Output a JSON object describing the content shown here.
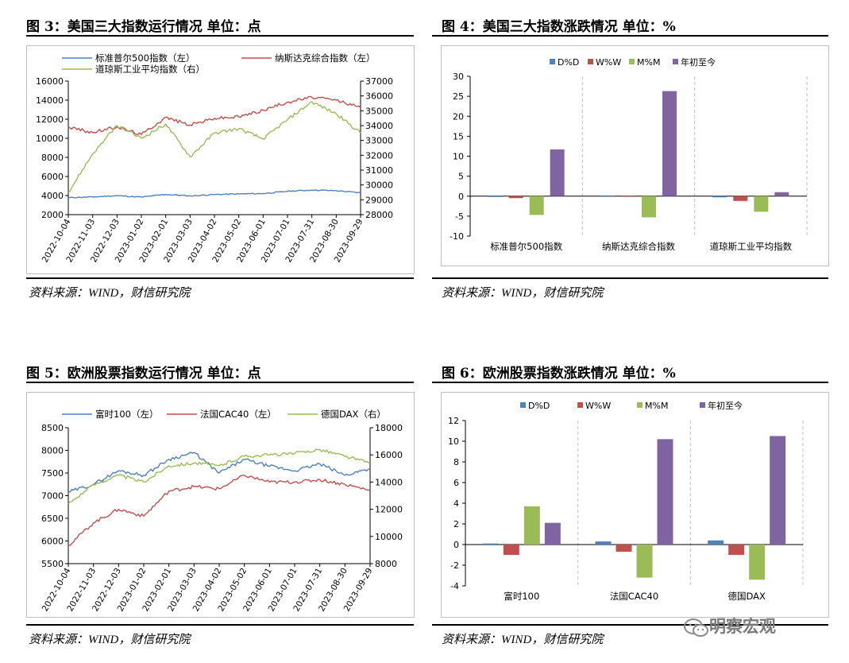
{
  "panels": [
    {
      "title": "图 3：美国三大指数运行情况  单位：点",
      "source": "资料来源：WIND，财信研究院"
    },
    {
      "title": "图 4：美国三大指数涨跌情况  单位：%",
      "source": "资料来源：WIND，财信研究院"
    },
    {
      "title": "图 5：欧洲股票指数运行情况  单位：点",
      "source": "资料来源：WIND，财信研究院"
    },
    {
      "title": "图 6：欧洲股票指数涨跌情况  单位：%",
      "source": "资料来源：WIND，财信研究院"
    }
  ],
  "watermark": "明察宏观",
  "colors": {
    "blue": "#4f81bd",
    "red": "#c0504d",
    "green": "#9bbb59",
    "purple": "#8064a2",
    "grid": "#d9d9d9",
    "axis": "#000000"
  },
  "chart_data": [
    {
      "type": "line",
      "dates": [
        "2022-10-04",
        "2022-11-03",
        "2022-12-03",
        "2023-01-02",
        "2023-02-01",
        "2023-03-03",
        "2023-04-02",
        "2023-05-02",
        "2023-06-01",
        "2023-07-01",
        "2023-07-31",
        "2023-08-30",
        "2023-09-29"
      ],
      "ylim_left": [
        2000,
        16000
      ],
      "yticks_left": [
        "16000",
        "14000",
        "12000",
        "10000",
        "8000",
        "6000",
        "4000",
        "2000"
      ],
      "ylim_right": [
        28000,
        37000
      ],
      "yticks_right": [
        "37000",
        "36000",
        "35000",
        "34000",
        "33000",
        "32000",
        "31000",
        "30000",
        "29000",
        "28000"
      ],
      "series": [
        {
          "name": "标准普尔500指数（左）",
          "color": "#4f81bd",
          "axis": "left",
          "values": [
            3780,
            3850,
            3990,
            3840,
            4120,
            3960,
            4110,
            4170,
            4210,
            4450,
            4580,
            4510,
            4290
          ]
        },
        {
          "name": "纳斯达克综合指数（左）",
          "color": "#c0504d",
          "axis": "left",
          "values": [
            11180,
            10600,
            11200,
            10400,
            12200,
            11400,
            12100,
            12250,
            12950,
            13800,
            14300,
            14000,
            13220
          ]
        },
        {
          "name": "道琼斯工业平均指数（右）",
          "color": "#9bbb59",
          "axis": "right",
          "values": [
            29500,
            32100,
            34000,
            33150,
            34100,
            31900,
            33500,
            33800,
            33100,
            34400,
            35600,
            34800,
            33500
          ]
        }
      ]
    },
    {
      "type": "bar",
      "categories": [
        "标准普尔500指数",
        "纳斯达克综合指数",
        "道琼斯工业平均指数"
      ],
      "ylim": [
        -10,
        30
      ],
      "yticks": [
        "30",
        "25",
        "20",
        "15",
        "10",
        "5",
        "0",
        "-5",
        "-10"
      ],
      "series": [
        {
          "name": "D%D",
          "color": "#4f81bd",
          "values": [
            -0.2,
            -0.1,
            -0.3
          ]
        },
        {
          "name": "W%W",
          "color": "#c0504d",
          "values": [
            -0.5,
            -0.1,
            -1.2
          ]
        },
        {
          "name": "M%M",
          "color": "#9bbb59",
          "values": [
            -4.7,
            -5.3,
            -3.9
          ]
        },
        {
          "name": "年初至今",
          "color": "#8064a2",
          "values": [
            11.7,
            26.3,
            1.0
          ]
        }
      ]
    },
    {
      "type": "line",
      "dates": [
        "2022-10-04",
        "2022-11-03",
        "2022-12-03",
        "2023-01-02",
        "2023-02-01",
        "2023-03-03",
        "2023-04-02",
        "2023-05-02",
        "2023-06-01",
        "2023-07-01",
        "2023-07-31",
        "2023-08-30",
        "2023-09-29"
      ],
      "ylim_left": [
        5500,
        8500
      ],
      "yticks_left": [
        "8500",
        "8000",
        "7500",
        "7000",
        "6500",
        "6000",
        "5500"
      ],
      "ylim_right": [
        8000,
        18000
      ],
      "yticks_right": [
        "18000",
        "16000",
        "14000",
        "12000",
        "10000",
        "8000"
      ],
      "series": [
        {
          "name": "富时100（左）",
          "color": "#4f81bd",
          "axis": "left",
          "values": [
            7080,
            7250,
            7550,
            7450,
            7800,
            7950,
            7500,
            7800,
            7650,
            7550,
            7700,
            7450,
            7600
          ]
        },
        {
          "name": "法国CAC40（左）",
          "color": "#c0504d",
          "axis": "left",
          "values": [
            5900,
            6400,
            6700,
            6550,
            7100,
            7200,
            7150,
            7450,
            7300,
            7300,
            7350,
            7250,
            7120
          ]
        },
        {
          "name": "德国DAX（右）",
          "color": "#9bbb59",
          "axis": "right",
          "values": [
            12400,
            13800,
            14500,
            14000,
            15200,
            15400,
            15200,
            15900,
            16000,
            16100,
            16400,
            15900,
            15400
          ]
        }
      ]
    },
    {
      "type": "bar",
      "categories": [
        "富时100",
        "法国CAC40",
        "德国DAX"
      ],
      "ylim": [
        -4,
        12
      ],
      "yticks": [
        "12",
        "10",
        "8",
        "6",
        "4",
        "2",
        "0",
        "-2",
        "-4"
      ],
      "series": [
        {
          "name": "D%D",
          "color": "#4f81bd",
          "values": [
            0.1,
            0.3,
            0.4
          ]
        },
        {
          "name": "W%W",
          "color": "#c0504d",
          "values": [
            -1.0,
            -0.7,
            -1.0
          ]
        },
        {
          "name": "M%M",
          "color": "#9bbb59",
          "values": [
            3.7,
            -3.2,
            -3.4
          ]
        },
        {
          "name": "年初至今",
          "color": "#8064a2",
          "values": [
            2.1,
            10.2,
            10.5
          ]
        }
      ]
    }
  ]
}
